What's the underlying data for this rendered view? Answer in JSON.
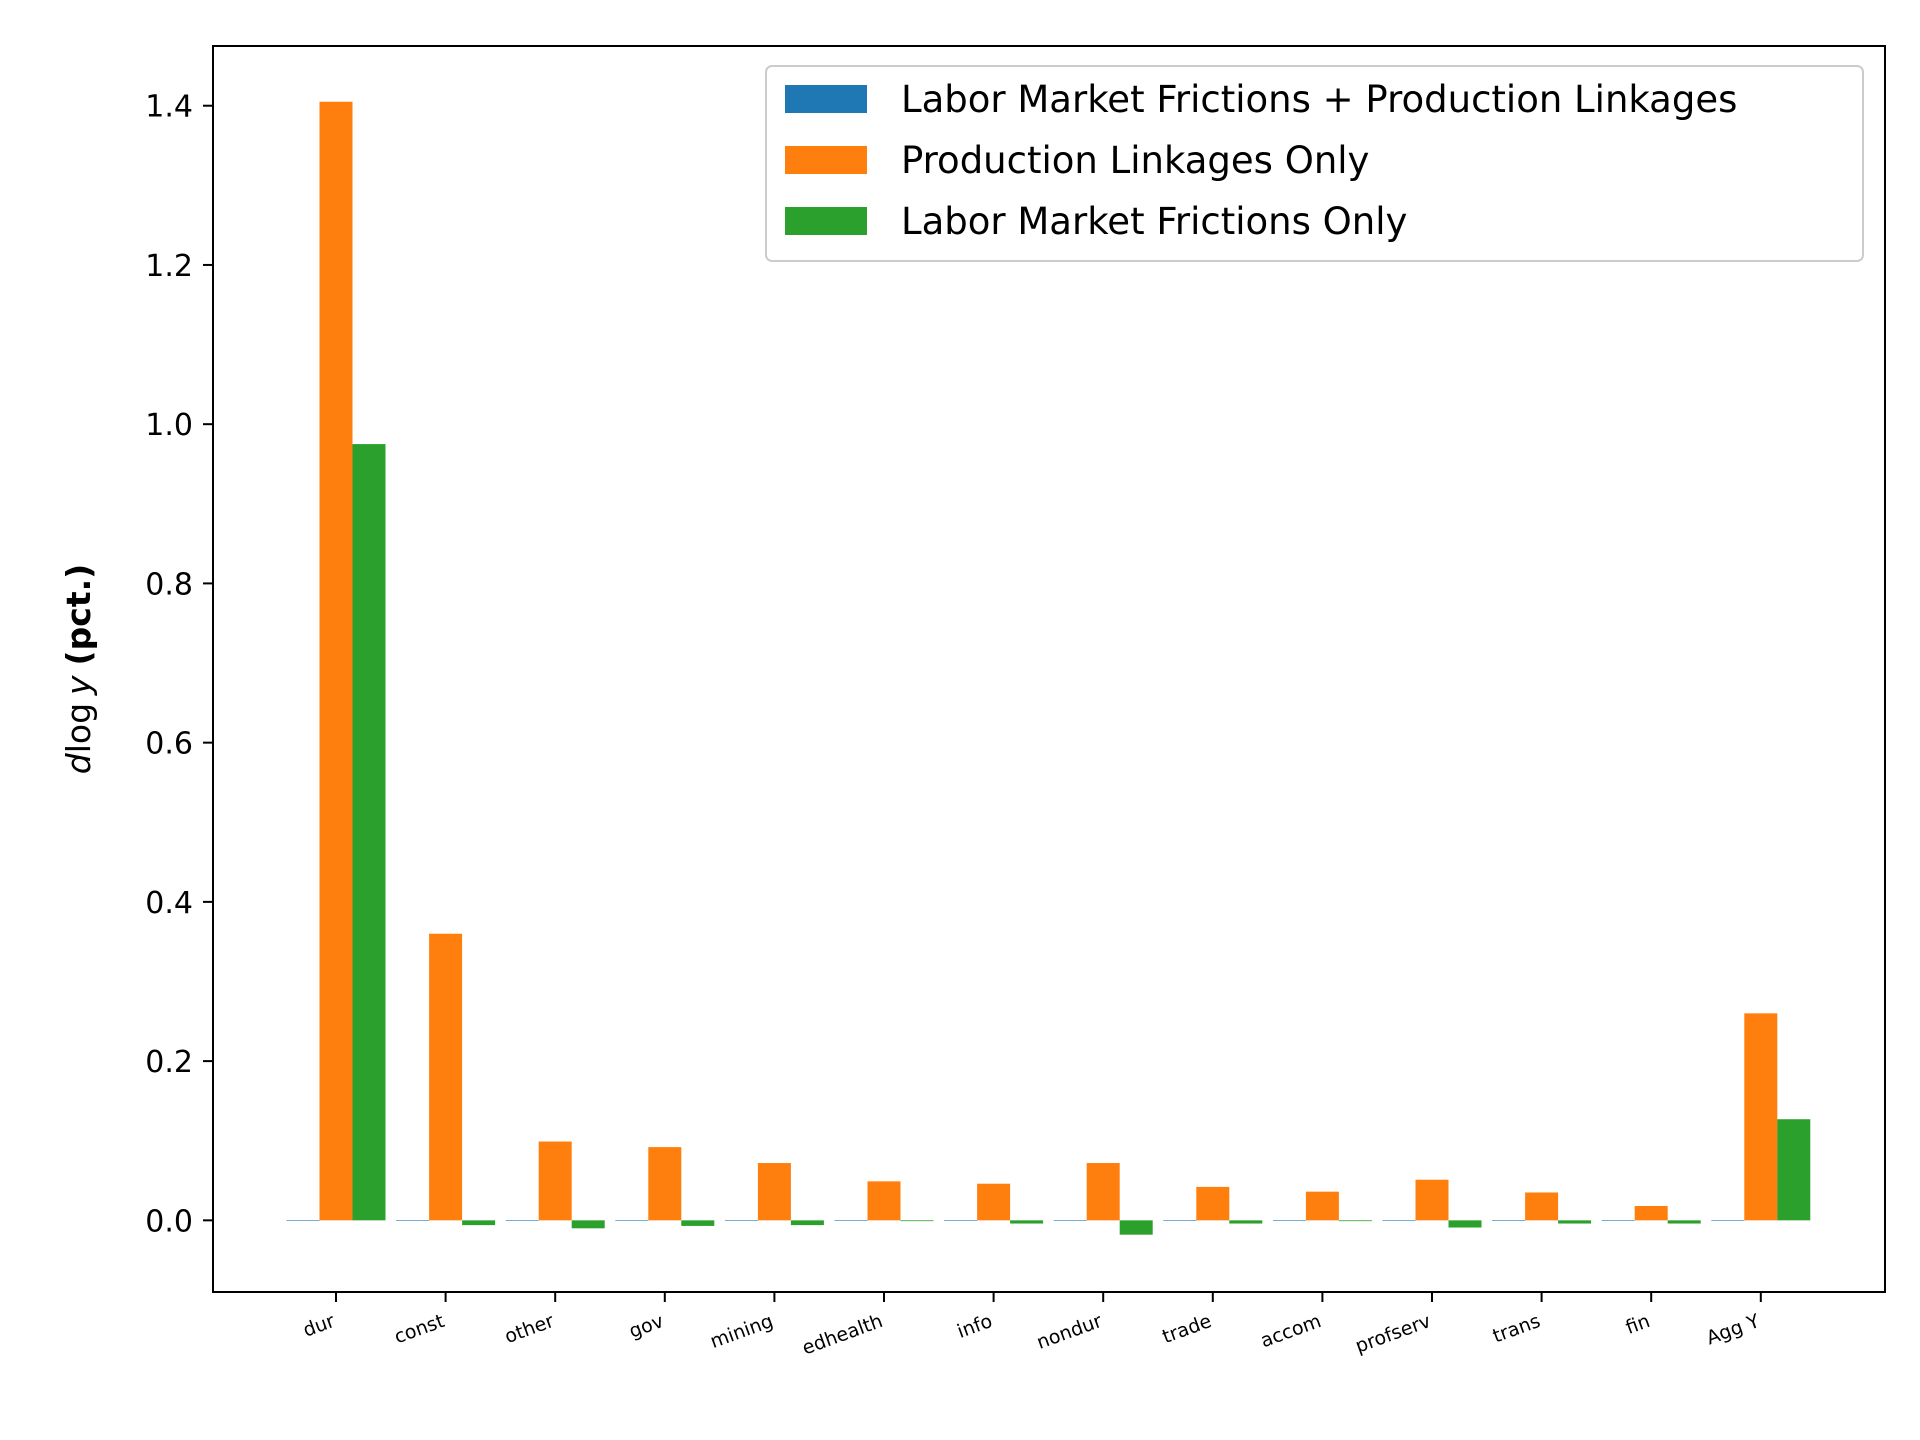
{
  "chart_data": {
    "type": "bar",
    "title": "",
    "xlabel": "",
    "ylabel": {
      "math": "d",
      "log": "log",
      "var": "y",
      "unit": "(pct.)"
    },
    "categories": [
      "dur",
      "const",
      "other",
      "gov",
      "mining",
      "edhealth",
      "info",
      "nondur",
      "trade",
      "accom",
      "profserv",
      "trans",
      "fin",
      "Agg Y"
    ],
    "series": [
      {
        "name": "Labor Market Frictions + Production Linkages",
        "color": "#1f77b4",
        "values": [
          0,
          0,
          0,
          0,
          0,
          0,
          0,
          0,
          0,
          0,
          0,
          0,
          0,
          0
        ]
      },
      {
        "name": "Production Linkages Only",
        "color": "#ff7f0e",
        "values": [
          1.405,
          0.36,
          0.099,
          0.092,
          0.072,
          0.049,
          0.046,
          0.072,
          0.042,
          0.036,
          0.051,
          0.035,
          0.018,
          0.26
        ]
      },
      {
        "name": "Labor Market Frictions Only",
        "color": "#2ca02c",
        "values": [
          0.975,
          -0.006,
          -0.01,
          -0.007,
          -0.006,
          -0.001,
          -0.004,
          -0.018,
          -0.004,
          -0.001,
          -0.009,
          -0.004,
          -0.004,
          0.127
        ]
      }
    ],
    "ylim": [
      -0.09,
      1.475
    ],
    "yticks": [
      "0.0",
      "0.2",
      "0.4",
      "0.6",
      "0.8",
      "1.0",
      "1.2",
      "1.4"
    ],
    "ytick_values": [
      0.0,
      0.2,
      0.4,
      0.6,
      0.8,
      1.0,
      1.2,
      1.4
    ],
    "legend_position": "top-right",
    "grid": false
  }
}
